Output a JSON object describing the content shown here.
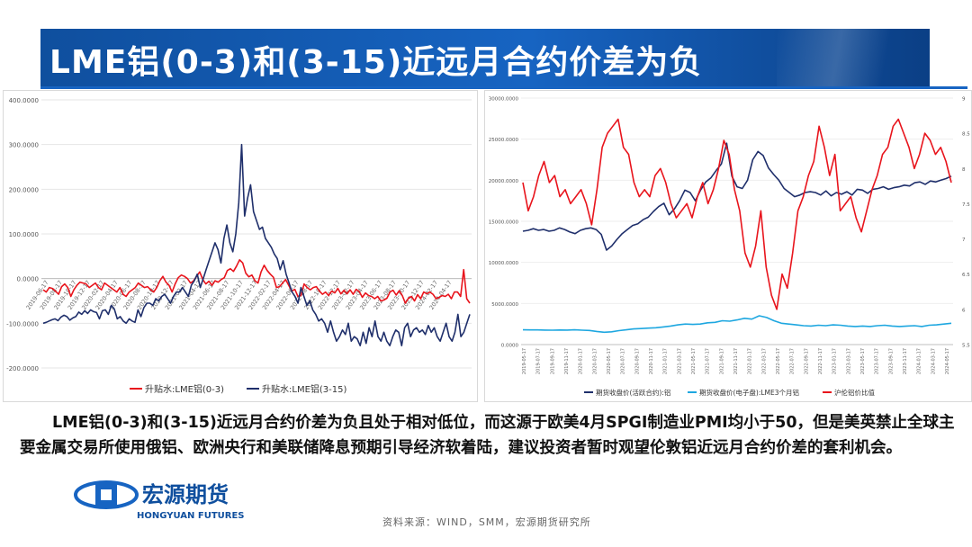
{
  "title": "LME铝(0-3)和(3-15)近远月合约价差为负",
  "paragraph": "LME铝(0-3)和(3-15)近远月合约价差为负且处于相对低位，而这源于欧美4月SPGI制造业PMI均小于50，但是美英禁止全球主要金属交易所使用俄铝、欧洲央行和美联储降息预期引导经济软着陆，建议投资者暂时观望伦敦铝近远月合约价差的套利机会。",
  "source": "资料来源：WIND，SMM，宏源期货研究所",
  "logo": {
    "cn": "宏源期货",
    "en": "HONGYUAN FUTURES"
  },
  "chart_data": [
    {
      "type": "line",
      "title": "",
      "y_ticks": [
        "400.0000",
        "300.0000",
        "200.0000",
        "100.0000",
        "0.0000",
        "-100.0000",
        "-200.0000"
      ],
      "ylim": [
        -200,
        400
      ],
      "x_labels": [
        "2019-06-17",
        "2019-08-17",
        "2019-10-17",
        "2019-12-17",
        "2020-02-17",
        "2020-04-17",
        "2020-06-17",
        "2020-08-17",
        "2020-10-17",
        "2020-12-17",
        "2021-02-17",
        "2021-04-17",
        "2021-06-17",
        "2021-08-17",
        "2021-10-17",
        "2021-12-17",
        "2022-02-17",
        "2022-04-17",
        "2022-06-17",
        "2022-08-17",
        "2022-10-17",
        "2022-12-17",
        "2023-02-17",
        "2023-04-17",
        "2023-06-17",
        "2023-08-17",
        "2023-10-17",
        "2023-12-17",
        "2024-02-17",
        "2024-04-17"
      ],
      "series": [
        {
          "name": "升贴水:LME铝(0-3)",
          "color": "#e8141c",
          "values": [
            -25,
            -30,
            -20,
            -22,
            -28,
            -35,
            -18,
            -12,
            -20,
            -40,
            -25,
            -15,
            -8,
            -10,
            -12,
            -20,
            -15,
            -10,
            -20,
            -25,
            -10,
            -15,
            -20,
            -25,
            -30,
            -20,
            -35,
            -40,
            -30,
            -25,
            -20,
            -10,
            -15,
            -20,
            -18,
            -25,
            -30,
            -20,
            -5,
            5,
            -8,
            -15,
            -30,
            -12,
            2,
            8,
            5,
            0,
            -10,
            -5,
            5,
            15,
            -2,
            -12,
            -6,
            -15,
            -5,
            -8,
            -2,
            2,
            18,
            22,
            16,
            28,
            42,
            35,
            12,
            4,
            8,
            -5,
            -10,
            15,
            30,
            18,
            10,
            3,
            -20,
            -18,
            -10,
            -2,
            -15,
            -28,
            -24,
            -40,
            -38,
            -12,
            -20,
            -25,
            -20,
            -18,
            -28,
            -35,
            -30,
            -38,
            -28,
            -32,
            -22,
            -34,
            -26,
            -34,
            -25,
            -35,
            -24,
            -29,
            -42,
            -32,
            -38,
            -40,
            -45,
            -40,
            -50,
            -48,
            -44,
            -30,
            -26,
            -37,
            -27,
            -38,
            -55,
            -44,
            -40,
            -50,
            -36,
            -45,
            -30,
            -34,
            -30,
            -35,
            -45,
            -42,
            -38,
            -40,
            -35,
            -45,
            -30,
            -30,
            -40,
            20,
            -45,
            -55
          ]
        },
        {
          "name": "升贴水:LME铝(3-15)",
          "color": "#1f2f6b",
          "values": [
            -100,
            -98,
            -95,
            -92,
            -90,
            -94,
            -86,
            -82,
            -85,
            -93,
            -88,
            -85,
            -75,
            -80,
            -72,
            -78,
            -70,
            -74,
            -76,
            -90,
            -72,
            -70,
            -80,
            -60,
            -68,
            -90,
            -85,
            -95,
            -100,
            -90,
            -95,
            -98,
            -70,
            -85,
            -65,
            -55,
            -55,
            -60,
            -45,
            -50,
            -40,
            -35,
            -45,
            -55,
            -40,
            -30,
            -30,
            -20,
            -30,
            -40,
            -15,
            -5,
            10,
            -20,
            0,
            20,
            40,
            60,
            80,
            65,
            35,
            90,
            120,
            80,
            60,
            100,
            170,
            300,
            140,
            180,
            210,
            150,
            130,
            110,
            115,
            90,
            80,
            70,
            55,
            45,
            20,
            40,
            10,
            -10,
            -30,
            -40,
            -55,
            -20,
            -40,
            -60,
            -50,
            -70,
            -80,
            -95,
            -90,
            -100,
            -120,
            -95,
            -120,
            -140,
            -130,
            -115,
            -125,
            -100,
            -140,
            -130,
            -135,
            -150,
            -120,
            -145,
            -110,
            -130,
            -95,
            -130,
            -140,
            -120,
            -140,
            -150,
            -130,
            -115,
            -120,
            -150,
            -110,
            -100,
            -130,
            -115,
            -110,
            -120,
            -115,
            -125,
            -105,
            -120,
            -110,
            -130,
            -140,
            -120,
            -100,
            -130,
            -140,
            -120,
            -80,
            -130,
            -120,
            -100,
            -80
          ]
        }
      ]
    },
    {
      "type": "line",
      "title": "",
      "y_ticks_left": [
        "30000.0000",
        "25000.0000",
        "20000.0000",
        "15000.0000",
        "10000.0000",
        "5000.0000",
        "0.0000"
      ],
      "ylim_left": [
        0,
        30000
      ],
      "y_ticks_right": [
        "9",
        "8.5",
        "8",
        "7.5",
        "7",
        "6.5",
        "6",
        "5.5"
      ],
      "ylim_right": [
        5.5,
        9
      ],
      "x_labels": [
        "2019-05-17",
        "2019-07-17",
        "2019-09-17",
        "2019-11-17",
        "2020-01-17",
        "2020-03-17",
        "2020-05-17",
        "2020-07-17",
        "2020-09-17",
        "2020-11-17",
        "2021-01-17",
        "2021-03-17",
        "2021-05-17",
        "2021-07-17",
        "2021-09-17",
        "2021-11-17",
        "2022-01-17",
        "2022-03-17",
        "2022-05-17",
        "2022-07-17",
        "2022-09-17",
        "2022-11-17",
        "2023-01-17",
        "2023-03-17",
        "2023-05-17",
        "2023-07-17",
        "2023-09-17",
        "2023-11-17",
        "2024-01-17",
        "2024-03-17",
        "2024-05-17"
      ],
      "series": [
        {
          "name": "期货收盘价(活跃合约):铝",
          "color": "#1f2f6b",
          "axis": "left",
          "values": [
            13800,
            13900,
            14100,
            13900,
            14000,
            13800,
            13900,
            14200,
            14000,
            13700,
            13500,
            13900,
            14100,
            14200,
            14000,
            13400,
            11500,
            12000,
            12800,
            13500,
            14000,
            14500,
            14700,
            15200,
            15500,
            16200,
            16800,
            17200,
            15800,
            16500,
            17500,
            18800,
            18500,
            17500,
            18800,
            19800,
            20300,
            21200,
            22000,
            24500,
            20500,
            19200,
            19000,
            20000,
            22500,
            23500,
            23000,
            21500,
            20700,
            20000,
            19000,
            18500,
            18000,
            18200,
            18500,
            18600,
            18500,
            18200,
            18700,
            18100,
            18500,
            18300,
            18600,
            18200,
            18900,
            18800,
            18400,
            18900,
            19000,
            19200,
            18900,
            19100,
            19200,
            19400,
            19300,
            19700,
            19800,
            19500,
            19900,
            19800,
            20000,
            20200,
            20500
          ]
        },
        {
          "name": "期货收盘价(电子盘):LME3个月铝",
          "color": "#1ea7e0",
          "axis": "left",
          "values": [
            1800,
            1790,
            1780,
            1760,
            1750,
            1770,
            1760,
            1800,
            1750,
            1720,
            1600,
            1500,
            1550,
            1700,
            1800,
            1900,
            1950,
            2000,
            2050,
            2150,
            2250,
            2400,
            2500,
            2450,
            2500,
            2650,
            2700,
            2900,
            2850,
            3000,
            3200,
            3100,
            3500,
            3300,
            2900,
            2600,
            2500,
            2400,
            2300,
            2250,
            2350,
            2300,
            2400,
            2350,
            2250,
            2200,
            2250,
            2200,
            2300,
            2350,
            2250,
            2200,
            2250,
            2300,
            2200,
            2350,
            2400,
            2500,
            2600
          ]
        },
        {
          "name": "沪伦铝价比值",
          "color": "#e8141c",
          "axis": "right",
          "values": [
            7.8,
            7.4,
            7.6,
            7.9,
            8.1,
            7.8,
            7.9,
            7.6,
            7.7,
            7.5,
            7.6,
            7.7,
            7.5,
            7.2,
            7.7,
            8.3,
            8.5,
            8.6,
            8.7,
            8.3,
            8.2,
            7.8,
            7.6,
            7.7,
            7.6,
            7.9,
            8.0,
            7.8,
            7.5,
            7.3,
            7.4,
            7.5,
            7.3,
            7.6,
            7.8,
            7.5,
            7.7,
            8.0,
            8.4,
            8.2,
            7.7,
            7.4,
            6.8,
            6.6,
            6.9,
            7.4,
            6.6,
            6.2,
            6.0,
            6.5,
            6.3,
            6.8,
            7.4,
            7.6,
            7.9,
            8.1,
            8.6,
            8.3,
            7.9,
            8.2,
            7.4,
            7.5,
            7.6,
            7.3,
            7.1,
            7.4,
            7.7,
            7.9,
            8.2,
            8.3,
            8.6,
            8.7,
            8.5,
            8.3,
            8.0,
            8.2,
            8.5,
            8.4,
            8.2,
            8.3,
            8.1,
            7.8
          ]
        }
      ]
    }
  ]
}
